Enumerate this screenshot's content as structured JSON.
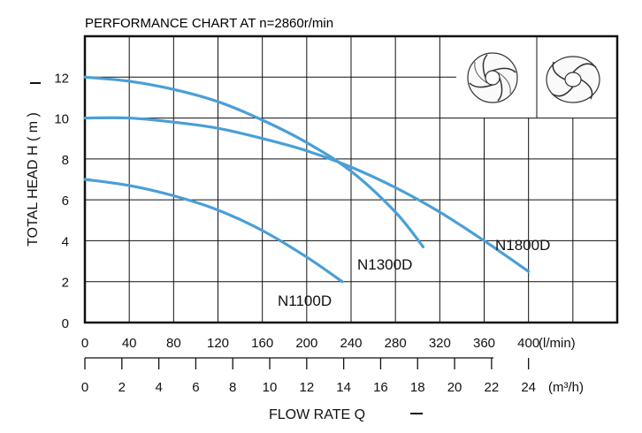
{
  "chart_data": {
    "type": "line",
    "title": "PERFORMANCE  CHART  AT  n=2860r/min",
    "ylabel": "TOTAL HEAD  H ( m )",
    "xlabel": "FLOW  RATE  Q",
    "x_unit_primary": "(l/min)",
    "x_unit_secondary": "(m³/h)",
    "xlim": [
      0,
      480
    ],
    "ylim": [
      0,
      14
    ],
    "x_ticks_primary": [
      "0",
      "40",
      "80",
      "120",
      "160",
      "200",
      "240",
      "280",
      "320",
      "360",
      "400"
    ],
    "x_ticks_secondary": [
      "0",
      "2",
      "4",
      "6",
      "8",
      "10",
      "12",
      "14",
      "16",
      "18",
      "20",
      "22",
      "24"
    ],
    "y_ticks": [
      "0",
      "2",
      "4",
      "6",
      "8",
      "10",
      "12"
    ],
    "grid": true,
    "legend": "none",
    "series_color": "#4a9fd6",
    "series": [
      {
        "name": "N1100D",
        "x": [
          0,
          40,
          80,
          120,
          160,
          200,
          232
        ],
        "y": [
          7,
          6.7,
          6.2,
          5.5,
          4.5,
          3.2,
          2
        ]
      },
      {
        "name": "N1300D",
        "x": [
          0,
          40,
          80,
          120,
          160,
          200,
          240,
          280,
          305
        ],
        "y": [
          12,
          11.8,
          11.4,
          10.8,
          9.9,
          8.8,
          7.4,
          5.4,
          3.7
        ]
      },
      {
        "name": "N1800D",
        "x": [
          0,
          40,
          80,
          120,
          160,
          200,
          240,
          280,
          320,
          360,
          400
        ],
        "y": [
          10,
          10,
          9.8,
          9.5,
          9.0,
          8.4,
          7.6,
          6.6,
          5.4,
          4.0,
          2.5
        ]
      }
    ],
    "impeller_icon_names": [
      "closed-impeller-icon",
      "open-impeller-icon"
    ]
  }
}
